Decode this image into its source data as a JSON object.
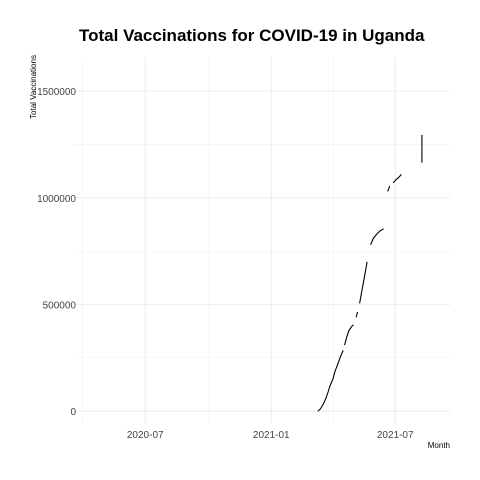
{
  "chart_data": {
    "type": "line",
    "title": "Total Vaccinations for COVID-19 in Uganda",
    "xlabel": "Month",
    "ylabel": "Total Vaccinations",
    "x_type": "date",
    "xlim": [
      "2020-03-19",
      "2021-09-19"
    ],
    "ylim": [
      -60000,
      1660000
    ],
    "x_ticks": [
      {
        "value": "2020-07-01",
        "label": "2020-07"
      },
      {
        "value": "2021-01-01",
        "label": "2021-01"
      },
      {
        "value": "2021-07-01",
        "label": "2021-07"
      }
    ],
    "y_ticks": [
      {
        "value": 0,
        "label": "0"
      },
      {
        "value": 500000,
        "label": "500000"
      },
      {
        "value": 1000000,
        "label": "1000000"
      },
      {
        "value": 1500000,
        "label": "1500000"
      }
    ],
    "grid": true,
    "series": [
      {
        "color": "#000000",
        "segments": [
          [
            [
              "2021-03-10",
              0
            ],
            [
              "2021-03-13",
              8000
            ],
            [
              "2021-03-16",
              22000
            ],
            [
              "2021-03-19",
              40000
            ],
            [
              "2021-03-22",
              62000
            ],
            [
              "2021-03-25",
              90000
            ],
            [
              "2021-03-28",
              120000
            ],
            [
              "2021-04-01",
              150000
            ],
            [
              "2021-04-04",
              185000
            ],
            [
              "2021-04-08",
              220000
            ],
            [
              "2021-04-12",
              255000
            ],
            [
              "2021-04-16",
              285000
            ]
          ],
          [
            [
              "2021-04-18",
              310000
            ],
            [
              "2021-04-21",
              345000
            ],
            [
              "2021-04-24",
              375000
            ],
            [
              "2021-04-28",
              395000
            ],
            [
              "2021-05-01",
              405000
            ]
          ],
          [
            [
              "2021-05-05",
              440000
            ],
            [
              "2021-05-07",
              465000
            ]
          ],
          [
            [
              "2021-05-10",
              505000
            ],
            [
              "2021-05-13",
              560000
            ],
            [
              "2021-05-16",
              610000
            ],
            [
              "2021-05-19",
              665000
            ],
            [
              "2021-05-21",
              700000
            ]
          ],
          [
            [
              "2021-05-26",
              780000
            ],
            [
              "2021-05-30",
              810000
            ],
            [
              "2021-06-04",
              830000
            ],
            [
              "2021-06-09",
              845000
            ],
            [
              "2021-06-14",
              855000
            ]
          ],
          [
            [
              "2021-06-20",
              1030000
            ],
            [
              "2021-06-23",
              1055000
            ]
          ],
          [
            [
              "2021-06-28",
              1070000
            ],
            [
              "2021-07-02",
              1085000
            ],
            [
              "2021-07-06",
              1095000
            ],
            [
              "2021-07-10",
              1110000
            ]
          ],
          [
            [
              "2021-08-09",
              1165000
            ],
            [
              "2021-08-09",
              1295000
            ]
          ]
        ]
      }
    ]
  }
}
